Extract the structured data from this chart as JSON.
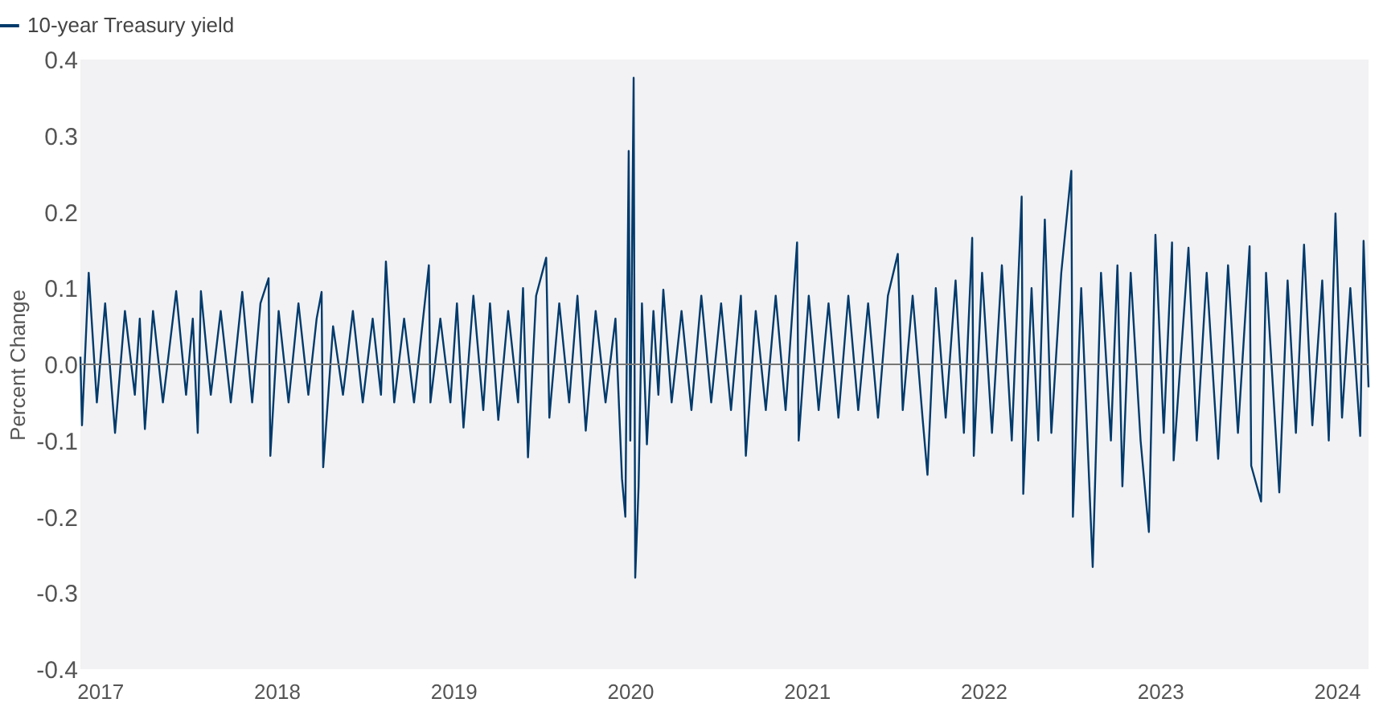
{
  "chart_data": {
    "type": "line",
    "ylabel": "Percent Change",
    "x": [
      2017.09,
      2017.099,
      2017.137,
      2017.183,
      2017.23,
      2017.286,
      2017.342,
      2017.398,
      2017.426,
      2017.455,
      2017.501,
      2017.557,
      2017.632,
      2017.688,
      2017.726,
      2017.754,
      2017.772,
      2017.828,
      2017.884,
      2017.941,
      2018.006,
      2018.062,
      2018.109,
      2018.155,
      2018.165,
      2018.212,
      2018.268,
      2018.324,
      2018.38,
      2018.427,
      2018.455,
      2018.464,
      2018.52,
      2018.576,
      2018.632,
      2018.688,
      2018.744,
      2018.791,
      2018.819,
      2018.866,
      2018.922,
      2018.978,
      2019.034,
      2019.062,
      2019.071,
      2019.127,
      2019.184,
      2019.221,
      2019.258,
      2019.314,
      2019.37,
      2019.408,
      2019.455,
      2019.511,
      2019.567,
      2019.595,
      2019.623,
      2019.669,
      2019.726,
      2019.744,
      2019.8,
      2019.856,
      2019.903,
      2019.95,
      2020.006,
      2020.062,
      2020.118,
      2020.155,
      2020.174,
      2020.193,
      2020.202,
      2020.221,
      2020.23,
      2020.249,
      2020.268,
      2020.296,
      2020.333,
      2020.361,
      2020.389,
      2020.436,
      2020.492,
      2020.548,
      2020.604,
      2020.66,
      2020.716,
      2020.772,
      2020.828,
      2020.856,
      2020.912,
      2020.969,
      2021.025,
      2021.081,
      2021.146,
      2021.155,
      2021.212,
      2021.268,
      2021.324,
      2021.38,
      2021.436,
      2021.492,
      2021.548,
      2021.604,
      2021.66,
      2021.716,
      2021.744,
      2021.8,
      2021.856,
      2021.884,
      2021.931,
      2021.987,
      2022.043,
      2022.09,
      2022.137,
      2022.146,
      2022.193,
      2022.249,
      2022.305,
      2022.361,
      2022.417,
      2022.426,
      2022.473,
      2022.511,
      2022.548,
      2022.585,
      2022.641,
      2022.698,
      2022.707,
      2022.754,
      2022.819,
      2022.866,
      2022.922,
      2022.959,
      2022.987,
      2023.034,
      2023.09,
      2023.137,
      2023.174,
      2023.221,
      2023.268,
      2023.277,
      2023.361,
      2023.408,
      2023.464,
      2023.529,
      2023.585,
      2023.641,
      2023.707,
      2023.716,
      2023.772,
      2023.8,
      2023.875,
      2023.922,
      2023.969,
      2024.015,
      2024.062,
      2024.118,
      2024.155,
      2024.193,
      2024.23,
      2024.277,
      2024.333,
      2024.352,
      2024.38
    ],
    "series": [
      {
        "name": "10-year Treasury yield",
        "color": "#003a6b",
        "values": [
          0.01,
          -0.08,
          0.12,
          -0.05,
          0.08,
          -0.09,
          0.07,
          -0.04,
          0.06,
          -0.085,
          0.07,
          -0.05,
          0.096,
          -0.04,
          0.06,
          -0.09,
          0.096,
          -0.04,
          0.07,
          -0.05,
          0.095,
          -0.05,
          0.08,
          0.113,
          -0.12,
          0.07,
          -0.05,
          0.08,
          -0.04,
          0.06,
          0.095,
          -0.135,
          0.05,
          -0.04,
          0.07,
          -0.05,
          0.06,
          -0.04,
          0.135,
          -0.05,
          0.06,
          -0.05,
          0.07,
          0.13,
          -0.05,
          0.06,
          -0.05,
          0.08,
          -0.083,
          0.09,
          -0.06,
          0.08,
          -0.073,
          0.07,
          -0.05,
          0.1,
          -0.122,
          0.09,
          0.14,
          -0.07,
          0.08,
          -0.05,
          0.09,
          -0.087,
          0.07,
          -0.05,
          0.06,
          -0.15,
          -0.2,
          0.28,
          -0.1,
          0.376,
          -0.28,
          -0.16,
          0.08,
          -0.105,
          0.07,
          -0.04,
          0.098,
          -0.05,
          0.07,
          -0.06,
          0.09,
          -0.05,
          0.08,
          -0.06,
          0.09,
          -0.12,
          0.07,
          -0.06,
          0.09,
          -0.06,
          0.16,
          -0.1,
          0.09,
          -0.06,
          0.08,
          -0.07,
          0.09,
          -0.06,
          0.08,
          -0.07,
          0.09,
          0.145,
          -0.06,
          0.09,
          -0.07,
          -0.145,
          0.1,
          -0.07,
          0.11,
          -0.09,
          0.166,
          -0.12,
          0.12,
          -0.09,
          0.13,
          -0.1,
          0.22,
          -0.17,
          0.1,
          -0.1,
          0.19,
          -0.09,
          0.12,
          0.254,
          -0.2,
          0.1,
          -0.266,
          0.12,
          -0.1,
          0.13,
          -0.16,
          0.12,
          -0.1,
          -0.22,
          0.17,
          -0.09,
          0.16,
          -0.126,
          0.153,
          -0.1,
          0.12,
          -0.124,
          0.13,
          -0.09,
          0.155,
          -0.133,
          -0.18,
          0.12,
          -0.168,
          0.11,
          -0.09,
          0.157,
          -0.08,
          0.11,
          -0.1,
          0.198,
          -0.07,
          0.1,
          -0.094,
          0.162,
          -0.03
        ]
      }
    ],
    "xlim": [
      2017.09,
      2024.38
    ],
    "xticks": [
      {
        "value": 2017.2,
        "label": "2017"
      },
      {
        "value": 2018.2,
        "label": "2018"
      },
      {
        "value": 2019.2,
        "label": "2019"
      },
      {
        "value": 2020.2,
        "label": "2020"
      },
      {
        "value": 2021.2,
        "label": "2021"
      },
      {
        "value": 2022.2,
        "label": "2022"
      },
      {
        "value": 2023.2,
        "label": "2023"
      },
      {
        "value": 2024.2,
        "label": "2024"
      }
    ],
    "ylim": [
      -0.4,
      0.4
    ],
    "yticks": [
      -0.4,
      -0.3,
      -0.2,
      -0.1,
      {
        "value": 0,
        "label": "0.0"
      },
      0.1,
      0.2,
      0.3,
      0.4
    ],
    "ref_lines": [
      {
        "axis": "y",
        "value": 0,
        "color": "#777777"
      }
    ],
    "grid": false,
    "legend": "top left",
    "marker": "none",
    "line_style": "solid"
  }
}
